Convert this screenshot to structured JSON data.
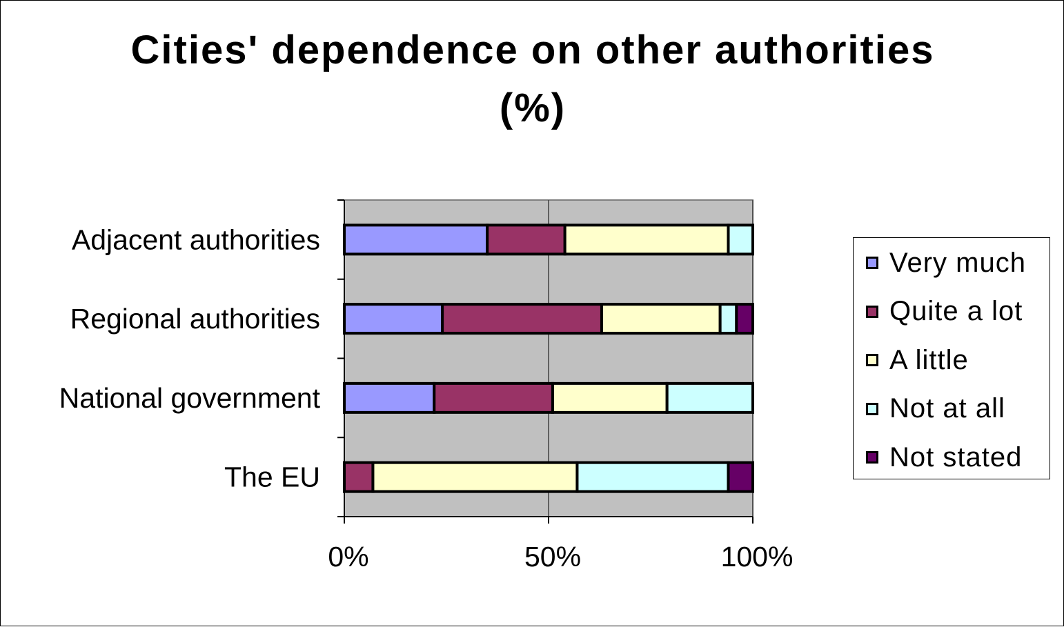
{
  "chart_data": {
    "type": "bar",
    "orientation": "horizontal",
    "stacked": "percent",
    "title": "Cities' dependence on other authorities",
    "subtitle": "(%)",
    "categories": [
      "Adjacent authorities",
      "Regional authorities",
      "National government",
      "The EU"
    ],
    "series": [
      {
        "name": "Very much",
        "color": "#9999ff",
        "values": [
          35,
          24,
          22,
          0
        ]
      },
      {
        "name": "Quite a lot",
        "color": "#993366",
        "values": [
          19,
          39,
          29,
          7
        ]
      },
      {
        "name": "A little",
        "color": "#ffffcc",
        "values": [
          40,
          29,
          28,
          50
        ]
      },
      {
        "name": "Not at all",
        "color": "#ccffff",
        "values": [
          6,
          4,
          21,
          37
        ]
      },
      {
        "name": "Not stated",
        "color": "#660066",
        "values": [
          0,
          4,
          0,
          6
        ]
      }
    ],
    "xticks": [
      "0%",
      "50%",
      "100%"
    ],
    "xlim": [
      0,
      100
    ],
    "plot_background": "#c0c0c0",
    "grid": true,
    "legend_position": "right"
  }
}
